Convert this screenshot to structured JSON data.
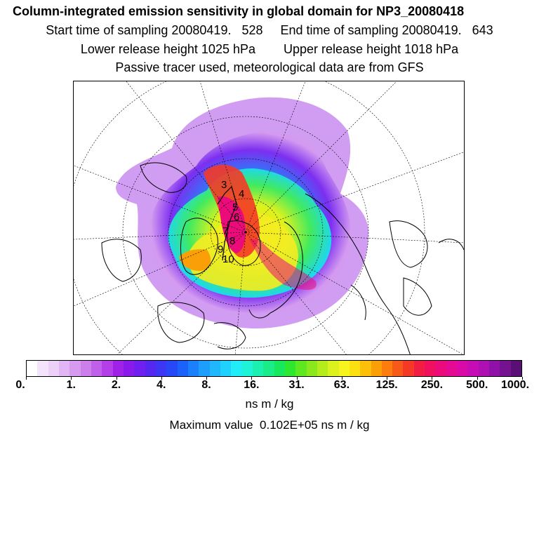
{
  "title": "Column-integrated emission sensitivity in global domain for NP3_20080418",
  "sampling_line": "Start time of sampling 20080419.   528     End time of sampling 20080419.   643",
  "release_line": "Lower release height 1025 hPa        Upper release height 1018 hPa",
  "tracer_line": "Passive tracer used, meteorological data are from GFS",
  "map": {
    "contour_labels": [
      "3",
      "4",
      "5",
      "6",
      "7",
      "8",
      "9",
      "10"
    ]
  },
  "colorbar": {
    "colors": [
      "#ffffff",
      "#f4e4fb",
      "#ebd0f7",
      "#e1b6f4",
      "#d69aef",
      "#cc7eea",
      "#c060e8",
      "#b43ee8",
      "#a022e8",
      "#8a1aec",
      "#6f1ff0",
      "#5528f2",
      "#3d36f5",
      "#2648f7",
      "#1a62f9",
      "#1b80fb",
      "#1d9dfc",
      "#1fb8fd",
      "#20d0fe",
      "#22ecf8",
      "#1ef3d6",
      "#1cf0b0",
      "#1aec88",
      "#18e85c",
      "#2ee830",
      "#5ee820",
      "#8ae81c",
      "#b4ec1c",
      "#dcf21e",
      "#f6f41f",
      "#fbe012",
      "#fcc00a",
      "#fb9f09",
      "#fa7d0e",
      "#f75a18",
      "#f43a26",
      "#f21d42",
      "#f0105f",
      "#ec0b7a",
      "#e40a93",
      "#d90aa8",
      "#c60db5",
      "#ae10b4",
      "#9011a8",
      "#74128f",
      "#5a0f74"
    ],
    "tick_labels": [
      "0.",
      "1.",
      "2.",
      "4.",
      "8.",
      "16.",
      "31.",
      "63.",
      "125.",
      "250.",
      "500.",
      "1000."
    ],
    "units": "ns m / kg",
    "max_value": "Maximum value  0.102E+05 ns m / kg"
  }
}
